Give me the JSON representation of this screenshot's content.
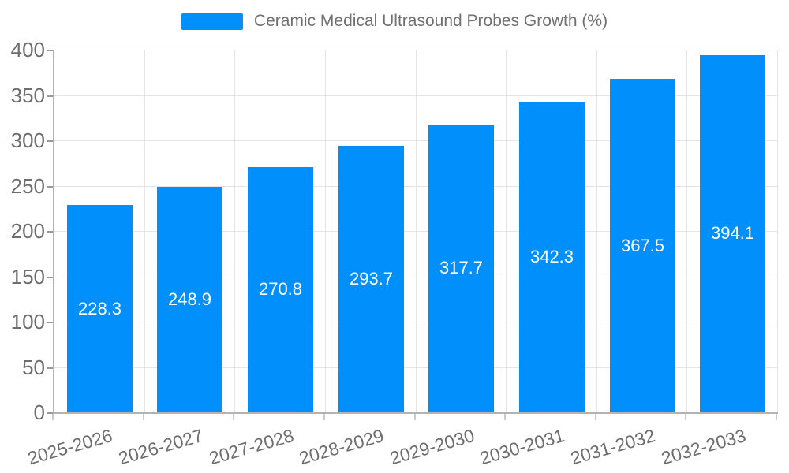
{
  "legend": {
    "label": "Ceramic Medical Ultrasound Probes Growth (%)"
  },
  "chart_data": {
    "type": "bar",
    "title": "",
    "series_name": "Ceramic Medical Ultrasound Probes Growth (%)",
    "categories": [
      "2025-2026",
      "2026-2027",
      "2027-2028",
      "2028-2029",
      "2029-2030",
      "2030-2031",
      "2031-2032",
      "2032-2033"
    ],
    "values": [
      228.3,
      248.9,
      270.8,
      293.7,
      317.7,
      342.3,
      367.5,
      394.1
    ],
    "value_labels": [
      "228.3",
      "248.9",
      "270.8",
      "293.7",
      "317.7",
      "342.3",
      "367.5",
      "394.1"
    ],
    "xlabel": "",
    "ylabel": "",
    "ylim": [
      0,
      400
    ],
    "ytick_step": 50,
    "ytick_labels": [
      "0",
      "50",
      "100",
      "150",
      "200",
      "250",
      "300",
      "350",
      "400"
    ],
    "grid": true,
    "legend_position": "top",
    "colors": {
      "bar": "#008FFB",
      "bar_label": "#ffffff",
      "gridline": "#e4e4e4",
      "axis_line": "#b3b3b3",
      "tick_label": "#6e6e6e",
      "legend_text": "#707070"
    }
  }
}
